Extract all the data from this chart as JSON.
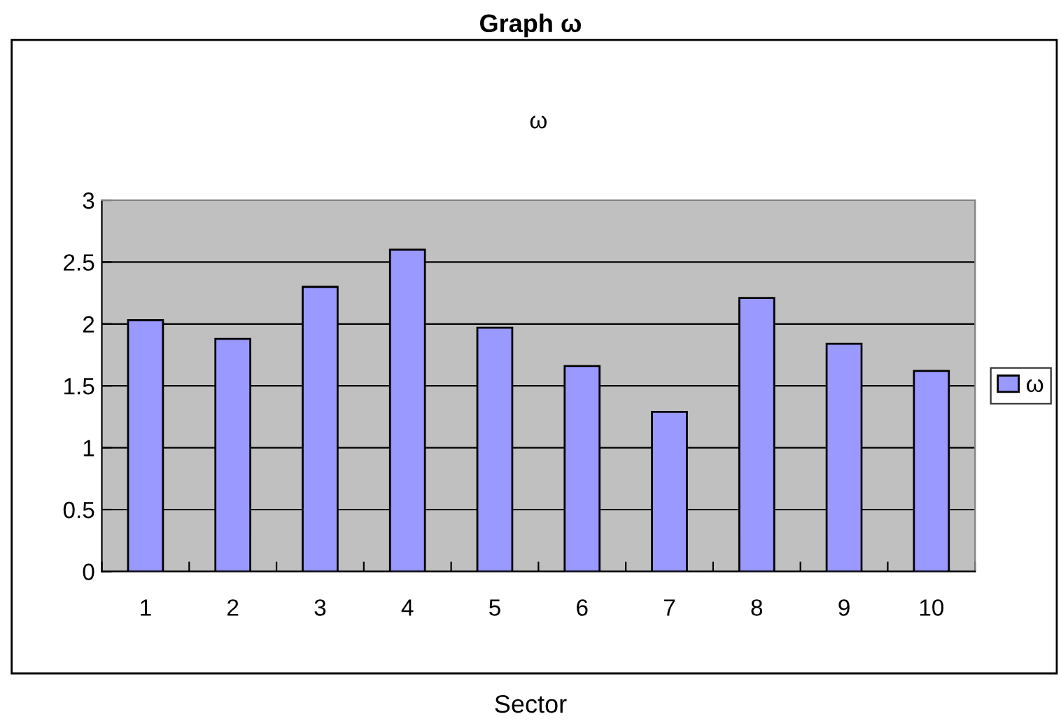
{
  "chart_data": {
    "type": "bar",
    "title": "Graph ω",
    "subtitle": "ω",
    "xlabel": "Sector",
    "categories": [
      "1",
      "2",
      "3",
      "4",
      "5",
      "6",
      "7",
      "8",
      "9",
      "10"
    ],
    "series": [
      {
        "name": "ω",
        "color": "#9999ff",
        "values": [
          2.03,
          1.88,
          2.3,
          2.6,
          1.97,
          1.66,
          1.29,
          2.21,
          1.84,
          1.62
        ]
      }
    ],
    "ylim": [
      0,
      3
    ],
    "yticks": [
      0,
      0.5,
      1,
      1.5,
      2,
      2.5,
      3
    ],
    "grid": "y",
    "legend": "right"
  }
}
